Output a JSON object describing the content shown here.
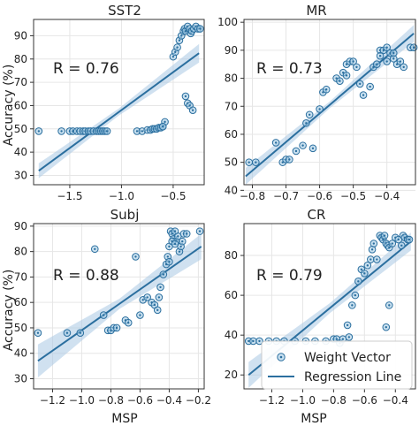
{
  "chart_data": [
    {
      "type": "scatter",
      "title": "SST2",
      "xlabel": "",
      "ylabel": "Accuracy (%)",
      "xlim": [
        -1.85,
        -0.2
      ],
      "ylim": [
        26,
        97
      ],
      "xticks": [
        -1.5,
        -1.0,
        -0.5
      ],
      "xtick_labels": [
        "−1.5",
        "−1.0",
        "−0.5"
      ],
      "yticks": [
        30,
        40,
        50,
        60,
        70,
        80,
        90
      ],
      "ytick_labels": [
        "30",
        "40",
        "50",
        "60",
        "70",
        "80",
        "90"
      ],
      "annotation": "R = 0.76",
      "grid": true,
      "regression": {
        "x": [
          -1.8,
          -0.25
        ],
        "y": [
          32,
          82.5
        ]
      },
      "band_half_width": [
        3.2,
        1.5,
        4.0
      ],
      "series": [
        {
          "name": "Weight Vector",
          "x": [
            -1.8,
            -1.58,
            -1.5,
            -1.47,
            -1.43,
            -1.4,
            -1.37,
            -1.35,
            -1.32,
            -1.3,
            -1.27,
            -1.24,
            -1.22,
            -1.2,
            -1.18,
            -1.16,
            -1.14,
            -0.85,
            -0.8,
            -0.75,
            -0.72,
            -0.7,
            -0.68,
            -0.66,
            -0.64,
            -0.62,
            -0.6,
            -0.58,
            -0.6,
            -0.5,
            -0.48,
            -0.46,
            -0.44,
            -0.42,
            -0.4,
            -0.39,
            -0.38,
            -0.36,
            -0.34,
            -0.33,
            -0.32,
            -0.3,
            -0.28,
            -0.26,
            -0.24,
            -0.38,
            -0.36,
            -0.34,
            -0.31
          ],
          "y": [
            49,
            49,
            49,
            49,
            49,
            49,
            49,
            49,
            49,
            49,
            49,
            49,
            49,
            49,
            49,
            49,
            49,
            49,
            49,
            49.5,
            49.5,
            50,
            50,
            50,
            50.5,
            50.5,
            51,
            53,
            51,
            81,
            83,
            85,
            88,
            90,
            92,
            93,
            92,
            94,
            93,
            91,
            92,
            93,
            94,
            93,
            93,
            64,
            61,
            60,
            58
          ]
        }
      ]
    },
    {
      "type": "scatter",
      "title": "MR",
      "xlabel": "",
      "ylabel": "",
      "xlim": [
        -0.825,
        -0.315
      ],
      "ylim": [
        42,
        101
      ],
      "xticks": [
        -0.8,
        -0.7,
        -0.6,
        -0.5,
        -0.4
      ],
      "xtick_labels": [
        "−0.8",
        "−0.7",
        "−0.6",
        "−0.5",
        "−0.4"
      ],
      "yticks": [
        40,
        50,
        60,
        70,
        80,
        90,
        100
      ],
      "ytick_labels": [
        "40",
        "50",
        "60",
        "70",
        "80",
        "90",
        "100"
      ],
      "annotation": "R = 0.73",
      "grid": true,
      "regression": {
        "x": [
          -0.82,
          -0.32
        ],
        "y": [
          45,
          96
        ]
      },
      "band_half_width": [
        3.0,
        1.2,
        3.0
      ],
      "series": [
        {
          "name": "Weight Vector",
          "x": [
            -0.81,
            -0.79,
            -0.73,
            -0.71,
            -0.7,
            -0.69,
            -0.67,
            -0.65,
            -0.64,
            -0.63,
            -0.62,
            -0.6,
            -0.59,
            -0.58,
            -0.55,
            -0.54,
            -0.53,
            -0.52,
            -0.51,
            -0.5,
            -0.49,
            -0.47,
            -0.45,
            -0.44,
            -0.43,
            -0.42,
            -0.41,
            -0.4,
            -0.39,
            -0.38,
            -0.37,
            -0.36,
            -0.35,
            -0.33,
            -0.32,
            -0.42,
            -0.4,
            -0.38,
            -0.52,
            -0.48
          ],
          "y": [
            50,
            50,
            57,
            50,
            51,
            51,
            54,
            56,
            64,
            67,
            55,
            69,
            75,
            76,
            80,
            79,
            82,
            85,
            86,
            86,
            84,
            74,
            77,
            84,
            85,
            90,
            90,
            91,
            89,
            87,
            85,
            86,
            84,
            91,
            91,
            88,
            86,
            89,
            81,
            78
          ]
        }
      ]
    },
    {
      "type": "scatter",
      "title": "Subj",
      "xlabel": "MSP",
      "ylabel": "Accuracy (%)",
      "xlim": [
        -1.33,
        -0.16
      ],
      "ylim": [
        26,
        91
      ],
      "xticks": [
        -1.2,
        -1.0,
        -0.8,
        -0.6,
        -0.4,
        -0.2
      ],
      "xtick_labels": [
        "−1.2",
        "−1.0",
        "−0.8",
        "−0.6",
        "−0.4",
        "−0.2"
      ],
      "yticks": [
        30,
        40,
        50,
        60,
        70,
        80,
        90
      ],
      "ytick_labels": [
        "30",
        "40",
        "50",
        "60",
        "70",
        "80",
        "90"
      ],
      "annotation": "R = 0.88",
      "grid": true,
      "regression": {
        "x": [
          -1.3,
          -0.18
        ],
        "y": [
          37,
          82
        ]
      },
      "band_half_width": [
        6.5,
        2.0,
        5.0
      ],
      "series": [
        {
          "name": "Weight Vector",
          "x": [
            -1.3,
            -1.1,
            -1.01,
            -0.91,
            -0.85,
            -0.82,
            -0.8,
            -0.78,
            -0.76,
            -0.7,
            -0.68,
            -0.63,
            -0.6,
            -0.58,
            -0.55,
            -0.52,
            -0.5,
            -0.48,
            -0.47,
            -0.46,
            -0.44,
            -0.42,
            -0.41,
            -0.4,
            -0.39,
            -0.38,
            -0.37,
            -0.36,
            -0.35,
            -0.34,
            -0.33,
            -0.32,
            -0.31,
            -0.3,
            -0.28,
            -0.19,
            -0.4,
            -0.38,
            -0.36
          ],
          "y": [
            48,
            48,
            48,
            81,
            55,
            49,
            49,
            50,
            50,
            53,
            52,
            78,
            55,
            61,
            62,
            60,
            59,
            57,
            62,
            66,
            71,
            75,
            78,
            82,
            88,
            87,
            85,
            88,
            84,
            86,
            80,
            82,
            84,
            87,
            87,
            88,
            76,
            84,
            83
          ]
        }
      ]
    },
    {
      "type": "scatter",
      "title": "CR",
      "xlabel": "MSP",
      "ylabel": "",
      "xlim": [
        -1.38,
        -0.27
      ],
      "ylim": [
        13,
        96
      ],
      "xticks": [
        -1.2,
        -1.0,
        -0.8,
        -0.6,
        -0.4
      ],
      "xtick_labels": [
        "−1.2",
        "−1.0",
        "−0.8",
        "−0.6",
        "−0.4"
      ],
      "yticks": [
        20,
        40,
        60,
        80
      ],
      "ytick_labels": [
        "20",
        "40",
        "60",
        "80"
      ],
      "annotation": "R = 0.79",
      "grid": true,
      "regression": {
        "x": [
          -1.35,
          -0.3
        ],
        "y": [
          20,
          87
        ]
      },
      "band_half_width": [
        6.5,
        2.5,
        4.5
      ],
      "series": [
        {
          "name": "Weight Vector",
          "x": [
            -1.35,
            -1.32,
            -1.28,
            -1.22,
            -1.17,
            -1.12,
            -1.05,
            -0.98,
            -0.92,
            -0.85,
            -0.8,
            -0.78,
            -0.76,
            -0.74,
            -0.71,
            -0.68,
            -0.66,
            -0.64,
            -0.62,
            -0.6,
            -0.58,
            -0.56,
            -0.55,
            -0.54,
            -0.52,
            -0.5,
            -0.49,
            -0.48,
            -0.47,
            -0.46,
            -0.45,
            -0.44,
            -0.42,
            -0.4,
            -0.38,
            -0.36,
            -0.35,
            -0.34,
            -0.32,
            -0.31,
            -0.46,
            -0.44,
            -0.7
          ],
          "y": [
            37,
            37,
            37,
            37,
            37,
            37,
            37,
            37,
            37,
            37,
            38,
            38,
            36,
            38,
            45,
            55,
            60,
            67,
            73,
            71,
            75,
            78,
            83,
            86,
            78,
            90,
            89,
            88,
            90,
            86,
            85,
            84,
            86,
            89,
            88,
            85,
            90,
            89,
            88,
            88,
            44,
            55,
            39
          ]
        }
      ]
    }
  ],
  "legend": {
    "position": "lower-right of CR panel",
    "items": [
      {
        "label": "Weight Vector",
        "kind": "marker"
      },
      {
        "label": "Regression Line",
        "kind": "line"
      }
    ]
  },
  "colors": {
    "line": "#2b6f9f",
    "band": "#a9c9e4",
    "marker_fill": "#9ec8e3",
    "marker_edge": "#2b6f9f",
    "grid": "#e6e6e6"
  }
}
